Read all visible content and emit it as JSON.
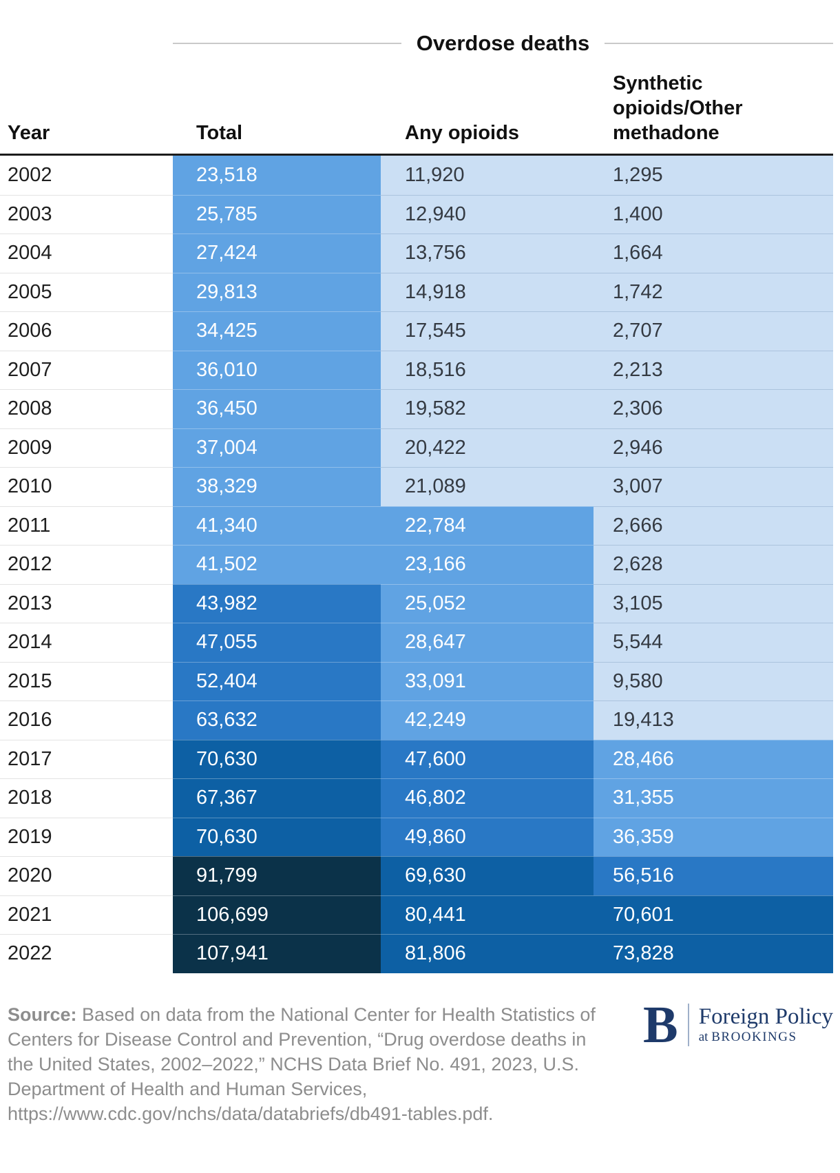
{
  "title": "Overdose deaths",
  "columns": {
    "year": "Year",
    "total": "Total",
    "any_opioids": "Any opioids",
    "synthetic": "Synthetic opioids/Other methadone"
  },
  "rows": [
    {
      "year": "2002",
      "total": "23,518",
      "any_opioids": "11,920",
      "synthetic": "1,295",
      "levels": {
        "total": 1,
        "any_opioids": 0,
        "synthetic": 0
      }
    },
    {
      "year": "2003",
      "total": "25,785",
      "any_opioids": "12,940",
      "synthetic": "1,400",
      "levels": {
        "total": 1,
        "any_opioids": 0,
        "synthetic": 0
      }
    },
    {
      "year": "2004",
      "total": "27,424",
      "any_opioids": "13,756",
      "synthetic": "1,664",
      "levels": {
        "total": 1,
        "any_opioids": 0,
        "synthetic": 0
      }
    },
    {
      "year": "2005",
      "total": "29,813",
      "any_opioids": "14,918",
      "synthetic": "1,742",
      "levels": {
        "total": 1,
        "any_opioids": 0,
        "synthetic": 0
      }
    },
    {
      "year": "2006",
      "total": "34,425",
      "any_opioids": "17,545",
      "synthetic": "2,707",
      "levels": {
        "total": 1,
        "any_opioids": 0,
        "synthetic": 0
      }
    },
    {
      "year": "2007",
      "total": "36,010",
      "any_opioids": "18,516",
      "synthetic": "2,213",
      "levels": {
        "total": 1,
        "any_opioids": 0,
        "synthetic": 0
      }
    },
    {
      "year": "2008",
      "total": "36,450",
      "any_opioids": "19,582",
      "synthetic": "2,306",
      "levels": {
        "total": 1,
        "any_opioids": 0,
        "synthetic": 0
      }
    },
    {
      "year": "2009",
      "total": "37,004",
      "any_opioids": "20,422",
      "synthetic": "2,946",
      "levels": {
        "total": 1,
        "any_opioids": 0,
        "synthetic": 0
      }
    },
    {
      "year": "2010",
      "total": "38,329",
      "any_opioids": "21,089",
      "synthetic": "3,007",
      "levels": {
        "total": 1,
        "any_opioids": 0,
        "synthetic": 0
      }
    },
    {
      "year": "2011",
      "total": "41,340",
      "any_opioids": "22,784",
      "synthetic": "2,666",
      "levels": {
        "total": 1,
        "any_opioids": 1,
        "synthetic": 0
      }
    },
    {
      "year": "2012",
      "total": "41,502",
      "any_opioids": "23,166",
      "synthetic": "2,628",
      "levels": {
        "total": 1,
        "any_opioids": 1,
        "synthetic": 0
      }
    },
    {
      "year": "2013",
      "total": "43,982",
      "any_opioids": "25,052",
      "synthetic": "3,105",
      "levels": {
        "total": 2,
        "any_opioids": 1,
        "synthetic": 0
      }
    },
    {
      "year": "2014",
      "total": "47,055",
      "any_opioids": "28,647",
      "synthetic": "5,544",
      "levels": {
        "total": 2,
        "any_opioids": 1,
        "synthetic": 0
      }
    },
    {
      "year": "2015",
      "total": "52,404",
      "any_opioids": "33,091",
      "synthetic": "9,580",
      "levels": {
        "total": 2,
        "any_opioids": 1,
        "synthetic": 0
      }
    },
    {
      "year": "2016",
      "total": "63,632",
      "any_opioids": "42,249",
      "synthetic": "19,413",
      "levels": {
        "total": 2,
        "any_opioids": 1,
        "synthetic": 0
      }
    },
    {
      "year": "2017",
      "total": "70,630",
      "any_opioids": "47,600",
      "synthetic": "28,466",
      "levels": {
        "total": 3,
        "any_opioids": 2,
        "synthetic": 1
      }
    },
    {
      "year": "2018",
      "total": "67,367",
      "any_opioids": "46,802",
      "synthetic": "31,355",
      "levels": {
        "total": 3,
        "any_opioids": 2,
        "synthetic": 1
      }
    },
    {
      "year": "2019",
      "total": "70,630",
      "any_opioids": "49,860",
      "synthetic": "36,359",
      "levels": {
        "total": 3,
        "any_opioids": 2,
        "synthetic": 1
      }
    },
    {
      "year": "2020",
      "total": "91,799",
      "any_opioids": "69,630",
      "synthetic": "56,516",
      "levels": {
        "total": 4,
        "any_opioids": 3,
        "synthetic": 2
      }
    },
    {
      "year": "2021",
      "total": "106,699",
      "any_opioids": "80,441",
      "synthetic": "70,601",
      "levels": {
        "total": 4,
        "any_opioids": 3,
        "synthetic": 3
      }
    },
    {
      "year": "2022",
      "total": "107,941",
      "any_opioids": "81,806",
      "synthetic": "73,828",
      "levels": {
        "total": 4,
        "any_opioids": 3,
        "synthetic": 3
      }
    }
  ],
  "footer": {
    "source_label": "Source:",
    "source_text": "Based on data from the National Center for Health Statistics of Centers for Disease Control and Prevention, “Drug overdose deaths in the United States, 2002–2022,” NCHS Data Brief No. 491, 2023, U.S. Department of Health and Human Services, https://www.cdc.gov/nchs/data/databriefs/db491-tables.pdf.",
    "logo": {
      "initial": "B",
      "name": "Foreign Policy",
      "sub_prefix": "at",
      "sub_name": "BROOKINGS"
    }
  },
  "colors": {
    "l0": "#cbdff4",
    "l1": "#60a3e3",
    "l2": "#2978c5",
    "l3": "#0d60a4",
    "l4": "#0b3249",
    "l0_text": "#343a42",
    "brand_navy": "#1e3a6a"
  },
  "chart_data": {
    "type": "table",
    "title": "Overdose deaths",
    "columns": [
      "Year",
      "Total",
      "Any opioids",
      "Synthetic opioids/Other methadone"
    ],
    "categories": [
      2002,
      2003,
      2004,
      2005,
      2006,
      2007,
      2008,
      2009,
      2010,
      2011,
      2012,
      2013,
      2014,
      2015,
      2016,
      2017,
      2018,
      2019,
      2020,
      2021,
      2022
    ],
    "series": [
      {
        "name": "Total",
        "values": [
          23518,
          25785,
          27424,
          29813,
          34425,
          36010,
          36450,
          37004,
          38329,
          41340,
          41502,
          43982,
          47055,
          52404,
          63632,
          70630,
          67367,
          70630,
          91799,
          106699,
          107941
        ]
      },
      {
        "name": "Any opioids",
        "values": [
          11920,
          12940,
          13756,
          14918,
          17545,
          18516,
          19582,
          20422,
          21089,
          22784,
          23166,
          25052,
          28647,
          33091,
          42249,
          47600,
          46802,
          49860,
          69630,
          80441,
          81806
        ]
      },
      {
        "name": "Synthetic opioids/Other methadone",
        "values": [
          1295,
          1400,
          1664,
          1742,
          2707,
          2213,
          2306,
          2946,
          3007,
          2666,
          2628,
          3105,
          5544,
          9580,
          19413,
          28466,
          31355,
          36359,
          56516,
          70601,
          73828
        ]
      }
    ],
    "layout_hints": {
      "cell_shading": "sequential blue scale, 5 quintile bins of the max value 107,941",
      "bin_palette": [
        "#cbdff4",
        "#60a3e3",
        "#2978c5",
        "#0d60a4",
        "#0b3249"
      ],
      "grid": "horizontal row separators only",
      "legend": "none"
    }
  }
}
